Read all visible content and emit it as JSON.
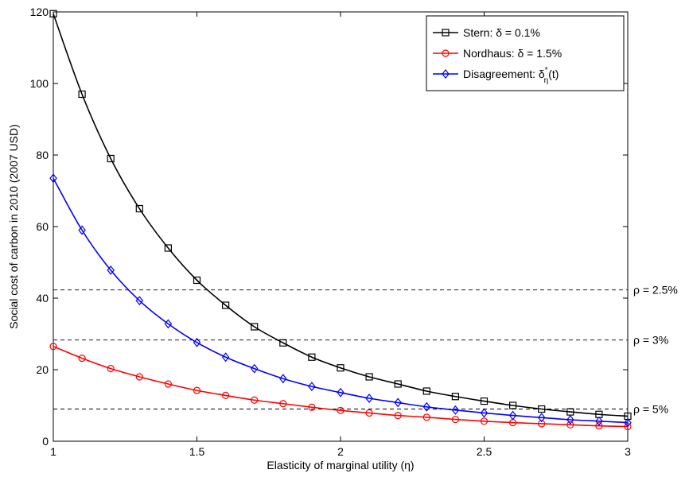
{
  "chart_data": {
    "type": "line",
    "xlabel": "Elasticity of marginal utility (η)",
    "ylabel": "Social cost of carbon in 2010 (2007 USD)",
    "xlim": [
      1,
      3
    ],
    "ylim": [
      0,
      120
    ],
    "xticks": [
      1,
      1.5,
      2,
      2.5,
      3
    ],
    "xtick_labels": [
      "1",
      "1.5",
      "2",
      "2.5",
      "3"
    ],
    "yticks": [
      0,
      20,
      40,
      60,
      80,
      100,
      120
    ],
    "ytick_labels": [
      "0",
      "20",
      "40",
      "60",
      "80",
      "100",
      "120"
    ],
    "grid": false,
    "legend_position": "top-right",
    "x": [
      1.0,
      1.1,
      1.2,
      1.3,
      1.4,
      1.5,
      1.6,
      1.7,
      1.8,
      1.9,
      2.0,
      2.1,
      2.2,
      2.3,
      2.4,
      2.5,
      2.6,
      2.7,
      2.8,
      2.9,
      3.0
    ],
    "series": [
      {
        "name": "Stern: δ = 0.1%",
        "color": "#000000",
        "marker": "square",
        "values": [
          119.5,
          97,
          79,
          65,
          54,
          45,
          38,
          32,
          27.5,
          23.5,
          20.5,
          18,
          16,
          14,
          12.5,
          11.2,
          10,
          9,
          8.2,
          7.5,
          7
        ]
      },
      {
        "name": "Nordhaus: δ = 1.5%",
        "color": "#ff0000",
        "marker": "circle",
        "values": [
          26.5,
          23.2,
          20.3,
          18,
          16,
          14.2,
          12.8,
          11.5,
          10.5,
          9.5,
          8.6,
          7.9,
          7.2,
          6.7,
          6.1,
          5.6,
          5.2,
          4.9,
          4.6,
          4.3,
          4.1
        ]
      },
      {
        "name": "Disagreement: δη*(t)",
        "legend_base": "Disagreement: δ",
        "legend_sub": "η",
        "legend_sup": "*",
        "legend_tail": "(t)",
        "color": "#0000ff",
        "marker": "diamond",
        "values": [
          73.5,
          59,
          47.8,
          39.3,
          32.8,
          27.6,
          23.5,
          20.3,
          17.5,
          15.3,
          13.6,
          12,
          10.8,
          9.6,
          8.7,
          7.9,
          7.2,
          6.6,
          6,
          5.6,
          5.2
        ]
      }
    ],
    "reference_lines": [
      {
        "y": 42.3,
        "label": "ρ = 2.5%"
      },
      {
        "y": 28.3,
        "label": "ρ = 3%"
      },
      {
        "y": 9.0,
        "label": "ρ = 5%"
      }
    ]
  }
}
